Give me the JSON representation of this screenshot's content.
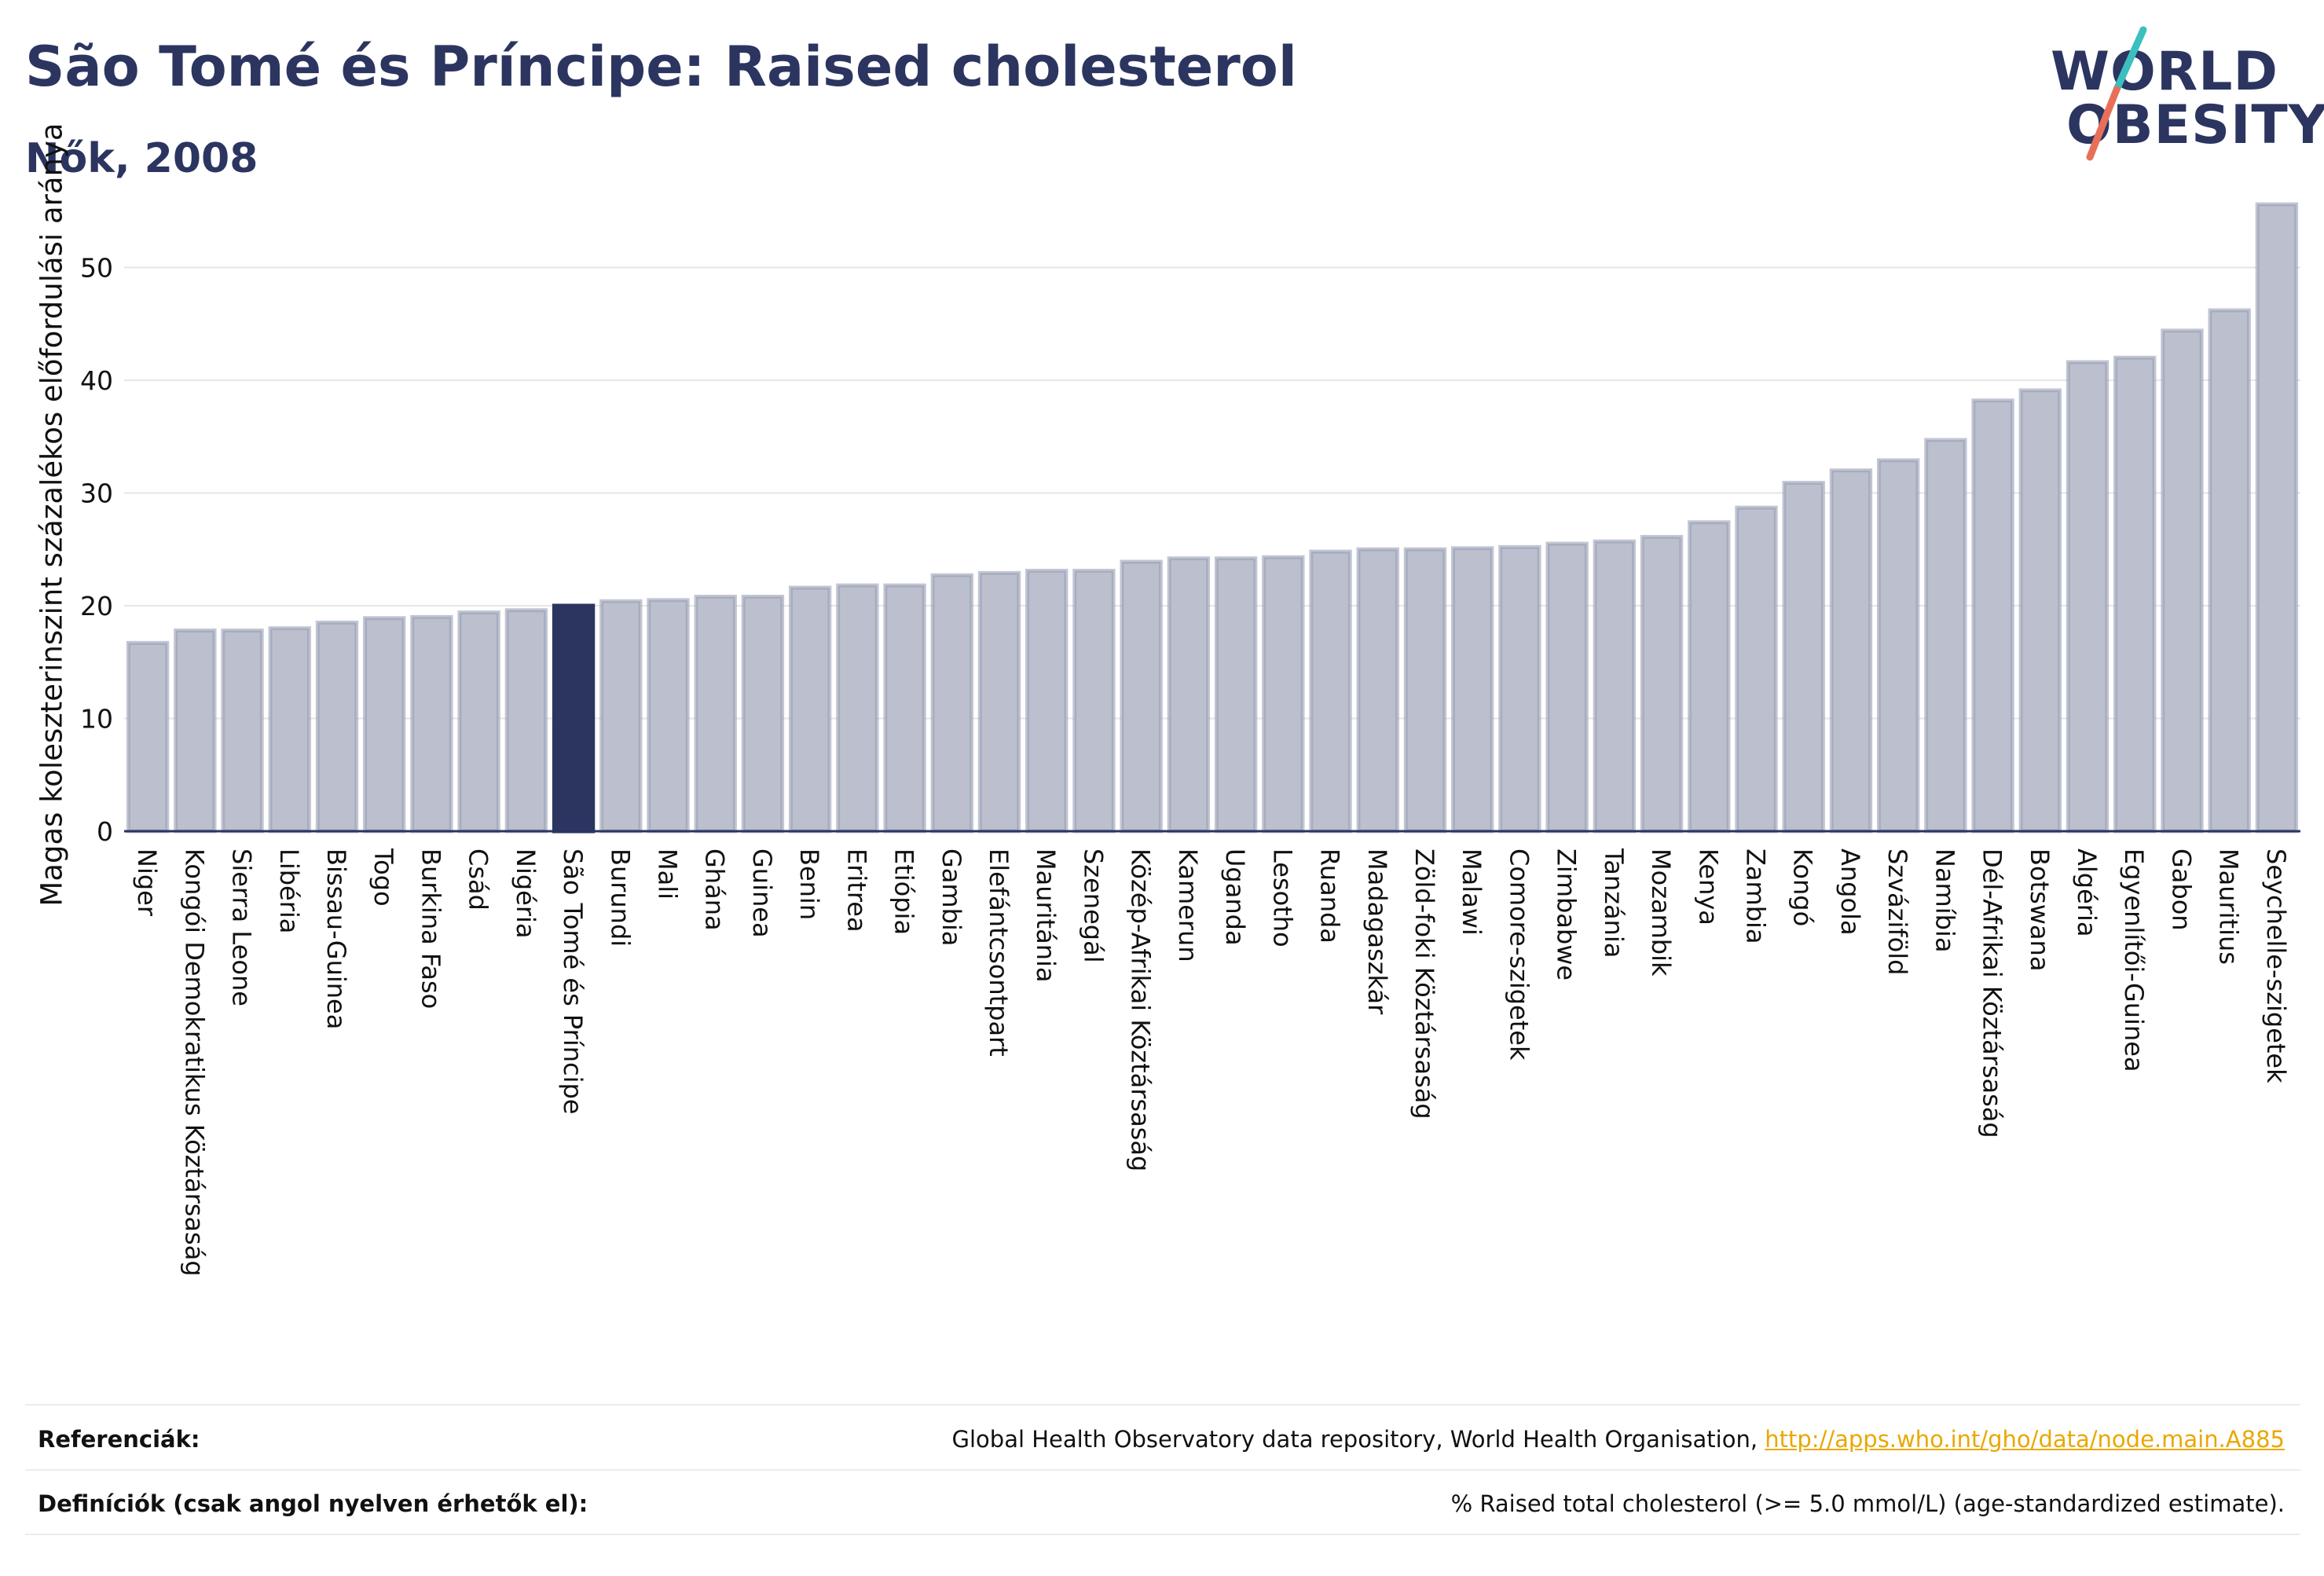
{
  "header": {
    "title": "São Tomé és Príncipe: Raised cholesterol",
    "subtitle": "Nők, 2008"
  },
  "logo": {
    "line1": "WORLD",
    "line2": "OBESITY",
    "colors": {
      "text": "#2b3560",
      "slash_top": "#3bbfbf",
      "slash_bottom": "#e8705a"
    }
  },
  "chart_data": {
    "type": "bar",
    "ylabel": "Magas koleszterinszint százalékos előfordulási aránya",
    "xlabel": "",
    "ylim": [
      0,
      57
    ],
    "yticks": [
      0,
      10,
      20,
      30,
      40,
      50
    ],
    "grid": true,
    "highlight": "São Tomé és Príncipe",
    "colors": {
      "bar": "#bcc0ce",
      "bar_edge": "#9aa0b5",
      "highlight": "#2b3560",
      "grid": "#e6e6e6",
      "axis": "#2b3560"
    },
    "categories": [
      "Niger",
      "Kongói Demokratikus Köztársaság",
      "Sierra Leone",
      "Libéria",
      "Bissau-Guinea",
      "Togo",
      "Burkina Faso",
      "Csád",
      "Nigéria",
      "São Tomé és Príncipe",
      "Burundi",
      "Mali",
      "Ghána",
      "Guinea",
      "Benin",
      "Eritrea",
      "Etiópia",
      "Gambia",
      "Elefántcsontpart",
      "Mauritánia",
      "Szenegál",
      "Közép-Afrikai Köztársaság",
      "Kamerun",
      "Uganda",
      "Lesotho",
      "Ruanda",
      "Madagaszkár",
      "Zöld-foki Köztársaság",
      "Malawi",
      "Comore-szigetek",
      "Zimbabwe",
      "Tanzánia",
      "Mozambik",
      "Kenya",
      "Zambia",
      "Kongó",
      "Angola",
      "Szváziföld",
      "Namíbia",
      "Dél-Afrikai Köztársaság",
      "Botswana",
      "Algéria",
      "Egyenlítői-Guinea",
      "Gabon",
      "Mauritius",
      "Seychelle-szigetek"
    ],
    "values": [
      16.7,
      17.8,
      17.8,
      18.0,
      18.5,
      18.9,
      19.0,
      19.4,
      19.6,
      20.0,
      20.4,
      20.5,
      20.8,
      20.8,
      21.6,
      21.8,
      21.8,
      22.7,
      22.9,
      23.1,
      23.1,
      23.9,
      24.2,
      24.2,
      24.3,
      24.8,
      25.0,
      25.0,
      25.1,
      25.2,
      25.5,
      25.7,
      26.1,
      27.4,
      28.7,
      30.9,
      32.0,
      32.9,
      34.7,
      38.2,
      39.1,
      41.6,
      42.0,
      44.4,
      46.2,
      55.6
    ]
  },
  "footer": {
    "references_label": "Referenciák:",
    "references_text": "Global Health Observatory data repository, World Health Organisation, ",
    "references_link": "http://apps.who.int/gho/data/node.main.A885",
    "definitions_label": "Definíciók (csak angol nyelven érhetők el):",
    "definitions_text": "% Raised total cholesterol (>= 5.0 mmol/L) (age-standardized estimate)."
  }
}
